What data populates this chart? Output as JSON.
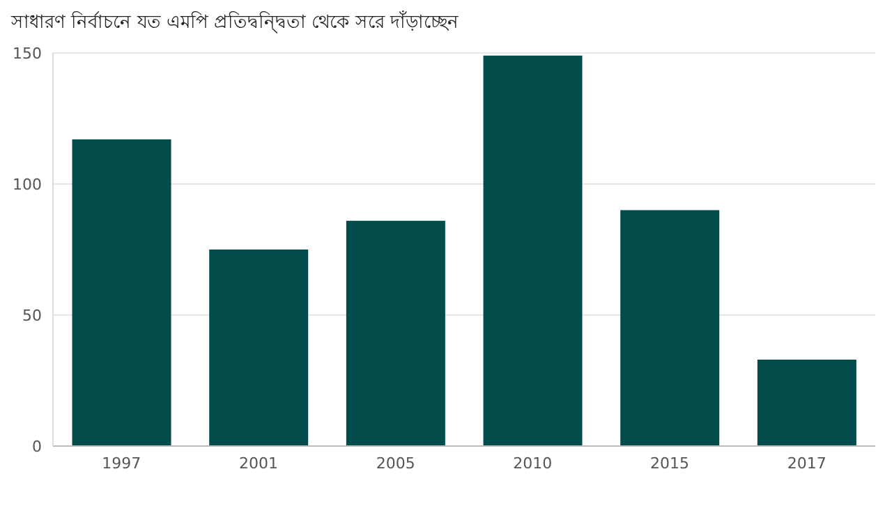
{
  "chart_data": {
    "type": "bar",
    "title": "সাধারণ নির্বাচনে যত এমপি প্রতিদ্বন্দ্বিতা থেকে সরে দাঁড়াচ্ছেন",
    "categories": [
      "1997",
      "2001",
      "2005",
      "2010",
      "2015",
      "2017"
    ],
    "values": [
      117,
      75,
      86,
      149,
      90,
      33
    ],
    "color": "#034c4c",
    "ylim": [
      0,
      150
    ],
    "yticks": [
      0,
      50,
      100,
      150
    ],
    "grid": "y"
  }
}
